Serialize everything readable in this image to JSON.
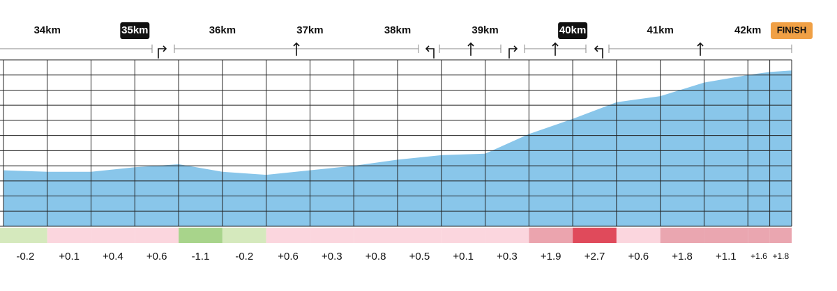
{
  "km_markers": [
    {
      "label": "34km",
      "km": 34
    },
    {
      "label": "35km",
      "km": 35,
      "badge": "#111111"
    },
    {
      "label": "36km",
      "km": 36
    },
    {
      "label": "37km",
      "km": 37
    },
    {
      "label": "38km",
      "km": 38
    },
    {
      "label": "39km",
      "km": 39
    },
    {
      "label": "40km",
      "km": 40,
      "badge": "#111111"
    },
    {
      "label": "41km",
      "km": 41
    },
    {
      "label": "42km",
      "km": 42
    },
    {
      "label": "FINISH",
      "km": 42.5,
      "badge": "#f0a045"
    }
  ],
  "profile": {
    "type": "area",
    "color": "#89c6ea",
    "xlim": [
      33.5,
      42.5
    ],
    "ylim": [
      0,
      11
    ],
    "yticks": [
      0,
      1,
      2,
      3,
      4,
      5,
      6,
      7,
      8,
      9,
      10,
      11
    ],
    "x": [
      33.5,
      34,
      34.5,
      35,
      35.5,
      36,
      36.5,
      37,
      37.5,
      38,
      38.5,
      39,
      39.5,
      40,
      40.5,
      41,
      41.5,
      42,
      42.25,
      42.5
    ],
    "values": [
      3.7,
      3.6,
      3.6,
      3.9,
      4.1,
      3.6,
      3.4,
      3.7,
      4.0,
      4.4,
      4.7,
      4.8,
      6.1,
      7.1,
      8.2,
      8.6,
      9.5,
      10.0,
      10.2,
      10.3
    ]
  },
  "segments": [
    {
      "label": "-0.2",
      "color": "#d5e9bd"
    },
    {
      "label": "+0.1",
      "color": "#fbd6de"
    },
    {
      "label": "+0.4",
      "color": "#fbd6de"
    },
    {
      "label": "+0.6",
      "color": "#fbd6de"
    },
    {
      "label": "-1.1",
      "color": "#a8d48b"
    },
    {
      "label": "-0.2",
      "color": "#d5e9bd"
    },
    {
      "label": "+0.6",
      "color": "#fbd6de"
    },
    {
      "label": "+0.3",
      "color": "#fbd6de"
    },
    {
      "label": "+0.8",
      "color": "#fbd6de"
    },
    {
      "label": "+0.5",
      "color": "#fbd6de"
    },
    {
      "label": "+0.1",
      "color": "#fbd6de"
    },
    {
      "label": "+0.3",
      "color": "#fbd6de"
    },
    {
      "label": "+1.9",
      "color": "#eba4ae"
    },
    {
      "label": "+2.7",
      "color": "#e04a5b"
    },
    {
      "label": "+0.6",
      "color": "#fbd6de"
    },
    {
      "label": "+1.8",
      "color": "#eaa6b0"
    },
    {
      "label": "+1.1",
      "color": "#eaa6b0"
    },
    {
      "label": "+1.6",
      "color": "#eaa6b0"
    },
    {
      "label": "+1.8",
      "color": "#eaa6b0"
    }
  ]
}
